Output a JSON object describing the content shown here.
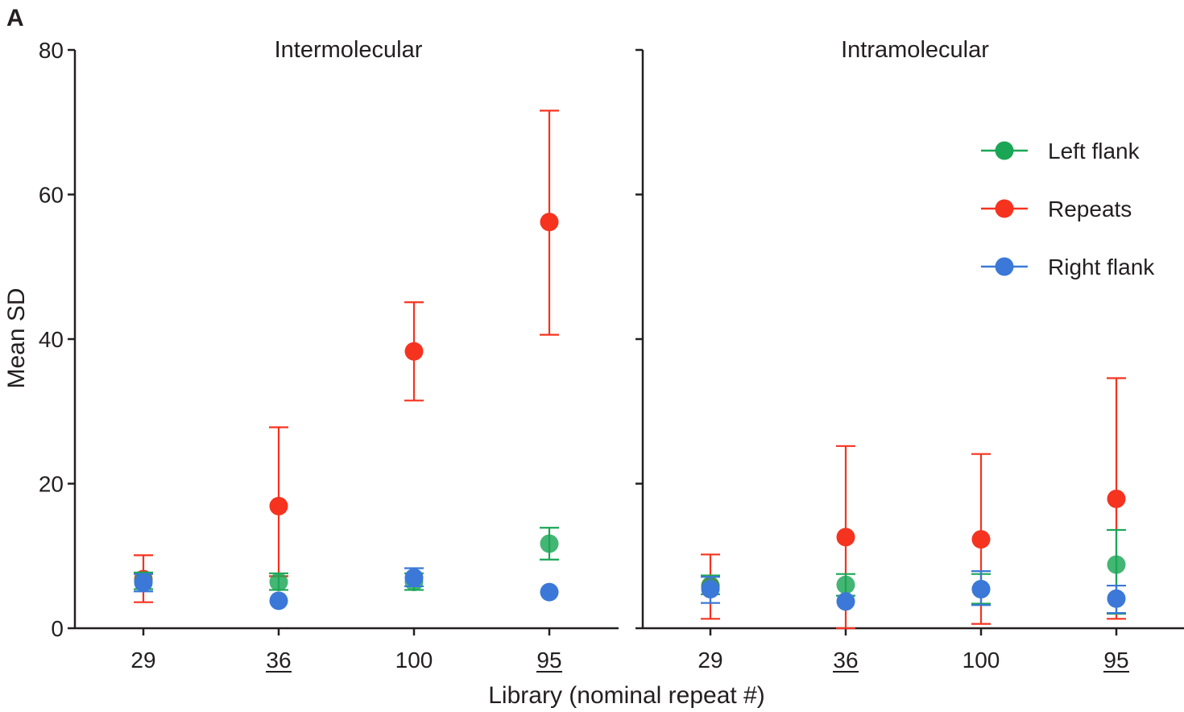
{
  "panel_letter": "A",
  "colors": {
    "left_flank": "#1aa655",
    "repeats": "#f5331f",
    "right_flank": "#3b78d8",
    "axis": "#231f20"
  },
  "chart_data": [
    {
      "type": "scatter",
      "title": "Intermolecular",
      "xlabel": "Library (nominal repeat #)",
      "ylabel": "Mean SD",
      "ylim": [
        0,
        80
      ],
      "yticks": [
        "0",
        "20",
        "40",
        "60",
        "80"
      ],
      "categories": [
        "29",
        "36",
        "100",
        "95"
      ],
      "underlined_categories": [
        "36",
        "95"
      ],
      "series": [
        {
          "name": "Left flank",
          "color_key": "left_flank",
          "values": [
            6.6,
            6.4,
            6.4,
            11.7
          ],
          "err_low": [
            5.4,
            5.3,
            5.3,
            9.5
          ],
          "err_high": [
            7.7,
            7.6,
            7.6,
            13.9
          ]
        },
        {
          "name": "Repeats",
          "color_key": "repeats",
          "values": [
            6.8,
            16.9,
            38.3,
            56.2
          ],
          "err_low": [
            3.6,
            7.2,
            31.5,
            40.6
          ],
          "err_high": [
            10.1,
            27.8,
            45.1,
            71.6
          ]
        },
        {
          "name": "Right flank",
          "color_key": "right_flank",
          "values": [
            6.3,
            3.8,
            7.0,
            5.0
          ],
          "err_low": [
            5.1,
            3.8,
            5.8,
            5.0
          ],
          "err_high": [
            7.5,
            3.8,
            8.3,
            5.0
          ]
        }
      ]
    },
    {
      "type": "scatter",
      "title": "Intramolecular",
      "xlabel": "Library (nominal repeat #)",
      "ylabel": "",
      "ylim": [
        0,
        80
      ],
      "categories": [
        "29",
        "36",
        "100",
        "95"
      ],
      "underlined_categories": [
        "36",
        "95"
      ],
      "series": [
        {
          "name": "Left flank",
          "color_key": "left_flank",
          "values": [
            5.9,
            6.0,
            5.4,
            8.8
          ],
          "err_low": [
            4.7,
            4.5,
            3.4,
            2.0
          ],
          "err_high": [
            7.3,
            7.5,
            7.5,
            13.6
          ]
        },
        {
          "name": "Repeats",
          "color_key": "repeats",
          "values": [
            5.8,
            12.6,
            12.3,
            17.9
          ],
          "err_low": [
            1.3,
            0.0,
            0.6,
            1.3
          ],
          "err_high": [
            10.2,
            25.2,
            24.1,
            34.6
          ]
        },
        {
          "name": "Right flank",
          "color_key": "right_flank",
          "values": [
            5.4,
            3.7,
            5.4,
            4.1
          ],
          "err_low": [
            3.5,
            3.7,
            3.2,
            2.1
          ],
          "err_high": [
            7.1,
            3.7,
            7.9,
            5.9
          ]
        }
      ]
    }
  ],
  "legend": {
    "placement": "top-right",
    "items": [
      {
        "label": "Left flank",
        "color_key": "left_flank"
      },
      {
        "label": "Repeats",
        "color_key": "repeats"
      },
      {
        "label": "Right flank",
        "color_key": "right_flank"
      }
    ]
  }
}
